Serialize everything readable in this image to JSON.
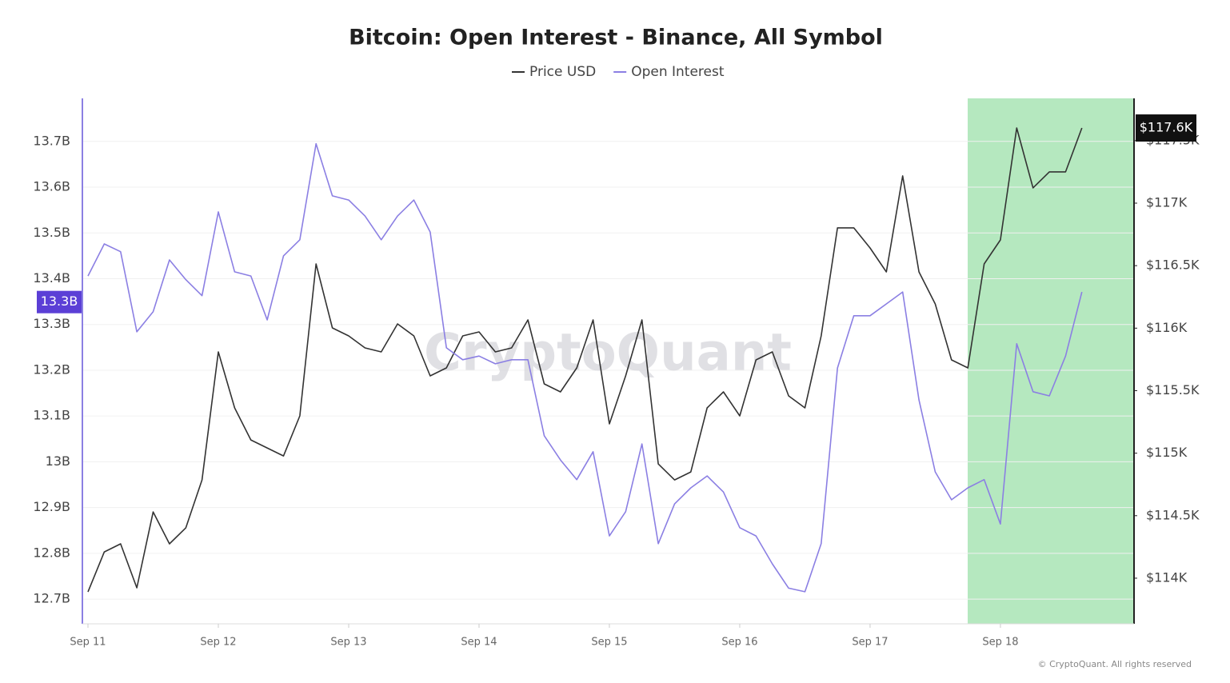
{
  "chart_data": {
    "type": "line",
    "title": "Bitcoin: Open Interest - Binance, All Symbol",
    "watermark": "CryptoQuant",
    "copyright": "© CryptoQuant. All rights reserved",
    "x": [
      11,
      11.125,
      11.25,
      11.375,
      11.5,
      11.625,
      11.75,
      11.875,
      12,
      12.125,
      12.25,
      12.375,
      12.5,
      12.625,
      12.75,
      12.875,
      13,
      13.125,
      13.25,
      13.375,
      13.5,
      13.625,
      13.75,
      13.875,
      14,
      14.125,
      14.25,
      14.375,
      14.5,
      14.625,
      14.75,
      14.875,
      15,
      15.125,
      15.25,
      15.375,
      15.5,
      15.625,
      15.75,
      15.875,
      16,
      16.125,
      16.25,
      16.375,
      16.5,
      16.625,
      16.75,
      16.875,
      17,
      17.125,
      17.25,
      17.375,
      17.5,
      17.625,
      17.75,
      17.875,
      18,
      18.125,
      18.25,
      18.375,
      18.5,
      18.625
    ],
    "series": [
      {
        "name": "Price USD",
        "color": "#333333",
        "axis": "y2",
        "values": [
          113890,
          114210,
          114275,
          113923,
          114530,
          114275,
          114402,
          114786,
          115810,
          115362,
          115106,
          115042,
          114978,
          115298,
          116514,
          116002,
          115938,
          115842,
          115810,
          116034,
          115938,
          115618,
          115682,
          115938,
          115970,
          115810,
          115842,
          116066,
          115554,
          115490,
          115682,
          116066,
          115234,
          115618,
          116066,
          114914,
          114786,
          114850,
          115362,
          115490,
          115298,
          115746,
          115810,
          115458,
          115362,
          115938,
          116802,
          116802,
          116642,
          116450,
          117218,
          116450,
          116194,
          115746,
          115682,
          116514,
          116706,
          117601,
          117122,
          117250,
          117250,
          117601
        ]
      },
      {
        "name": "Open Interest",
        "color": "#8b7fe3",
        "values": [
          13.406,
          13.476,
          13.459,
          13.284,
          13.328,
          13.441,
          13.398,
          13.363,
          13.546,
          13.415,
          13.406,
          13.31,
          13.45,
          13.485,
          13.695,
          13.581,
          13.572,
          13.537,
          13.485,
          13.537,
          13.572,
          13.502,
          13.249,
          13.223,
          13.231,
          13.214,
          13.223,
          13.223,
          13.057,
          13.004,
          12.961,
          13.022,
          12.838,
          12.891,
          13.039,
          12.821,
          12.908,
          12.943,
          12.969,
          12.934,
          12.856,
          12.838,
          12.777,
          12.724,
          12.716,
          12.821,
          13.205,
          13.319,
          13.319,
          13.345,
          13.371,
          13.135,
          12.978,
          12.917,
          12.943,
          12.961,
          12.864,
          13.258,
          13.153,
          13.144,
          13.231,
          13.371
        ]
      }
    ],
    "xlim": [
      10.957,
      19.025
    ],
    "xticks": [
      {
        "value": 11,
        "label": "Sep 11"
      },
      {
        "value": 12,
        "label": "Sep 12"
      },
      {
        "value": 13,
        "label": "Sep 13"
      },
      {
        "value": 14,
        "label": "Sep 14"
      },
      {
        "value": 15,
        "label": "Sep 15"
      },
      {
        "value": 16,
        "label": "Sep 16"
      },
      {
        "value": 17,
        "label": "Sep 17"
      },
      {
        "value": 18,
        "label": "Sep 18"
      }
    ],
    "ylim": [
      12.646,
      13.794
    ],
    "yticks": [
      {
        "value": 12.7,
        "label": "12.7B"
      },
      {
        "value": 12.8,
        "label": "12.8B"
      },
      {
        "value": 12.9,
        "label": "12.9B"
      },
      {
        "value": 13,
        "label": "13B"
      },
      {
        "value": 13.1,
        "label": "13.1B"
      },
      {
        "value": 13.2,
        "label": "13.2B"
      },
      {
        "value": 13.3,
        "label": "13.3B"
      },
      {
        "value": 13.4,
        "label": "13.4B"
      },
      {
        "value": 13.5,
        "label": "13.5B"
      },
      {
        "value": 13.6,
        "label": "13.6B"
      },
      {
        "value": 13.7,
        "label": "13.7B"
      }
    ],
    "y2lim": [
      113635,
      117838
    ],
    "y2ticks": [
      {
        "value": 114000,
        "label": "$114K"
      },
      {
        "value": 114500,
        "label": "$114.5K"
      },
      {
        "value": 115000,
        "label": "$115K"
      },
      {
        "value": 115500,
        "label": "$115.5K"
      },
      {
        "value": 116000,
        "label": "$116K"
      },
      {
        "value": 116500,
        "label": "$116.5K"
      },
      {
        "value": 117000,
        "label": "$117K"
      },
      {
        "value": 117500,
        "label": "$117.5K"
      }
    ],
    "oi_marker": {
      "value": 13.349,
      "label": "13.3B"
    },
    "price_marker": {
      "value": 117601,
      "label": "$117.6K"
    },
    "grid": true
  }
}
